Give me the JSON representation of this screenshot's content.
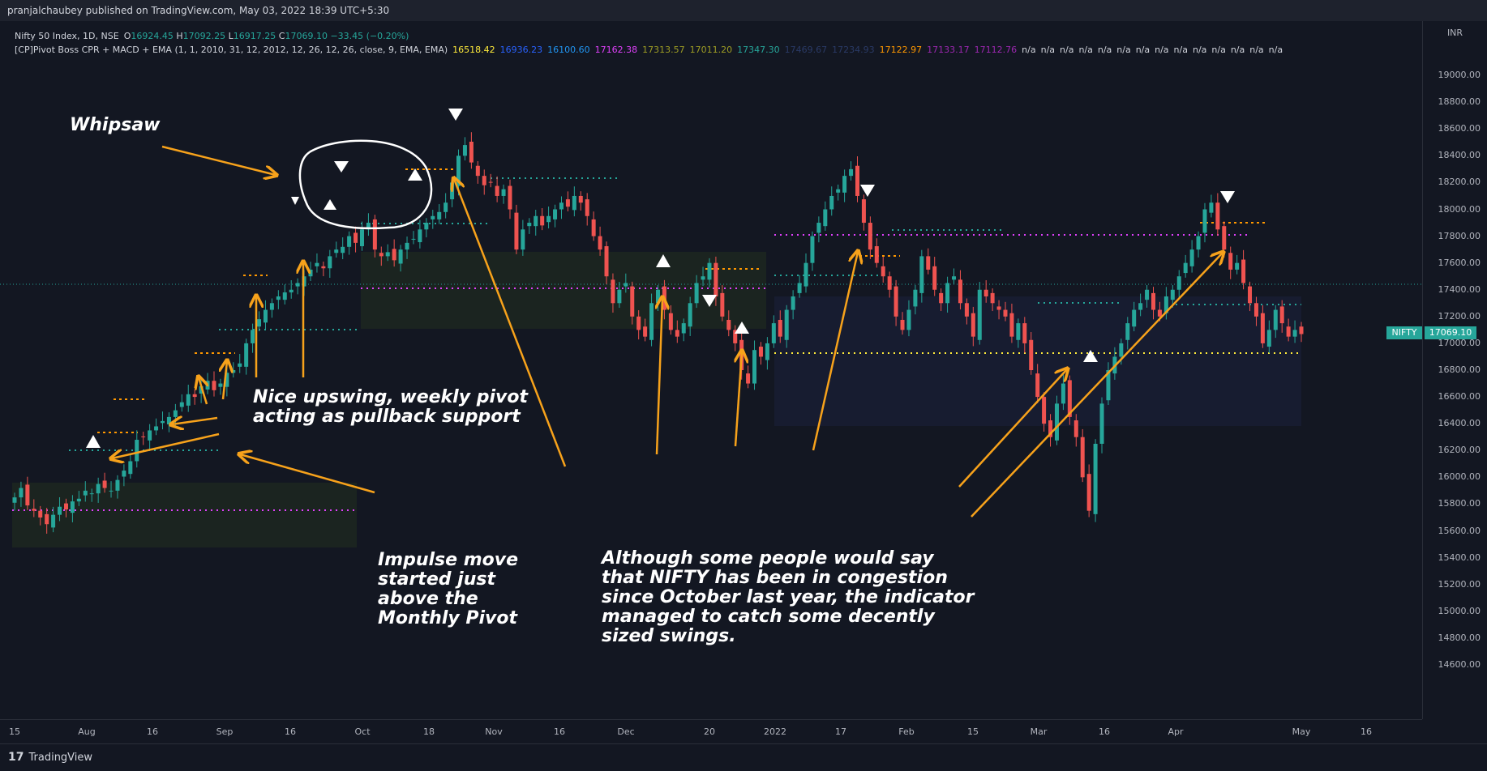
{
  "topbar": {
    "publish_text": "pranjalchaubey published on TradingView.com, May 03, 2022 18:39 UTC+5:30"
  },
  "legend": {
    "symbol": "Nifty 50 Index, 1D, NSE",
    "open_label": "O",
    "open": "16924.45",
    "high_label": "H",
    "high": "17092.25",
    "low_label": "L",
    "low": "16917.25",
    "close_label": "C",
    "close": "17069.10",
    "change": "−33.45 (−0.20%)",
    "indicator": "[CP]Pivot Boss CPR + MACD + EMA (1, 1, 2010, 31, 12, 2012, 12, 26, 12, 26, close, 9, EMA, EMA)",
    "values": [
      {
        "text": "16518.42",
        "color": "#ffeb3b"
      },
      {
        "text": "16936.23",
        "color": "#2962ff"
      },
      {
        "text": "16100.60",
        "color": "#2196f3"
      },
      {
        "text": "17162.38",
        "color": "#e040fb"
      },
      {
        "text": "17313.57",
        "color": "#9e9d24"
      },
      {
        "text": "17011.20",
        "color": "#9e9d24"
      },
      {
        "text": "17347.30",
        "color": "#26a69a"
      },
      {
        "text": "17469.67",
        "color": "#2a3a66"
      },
      {
        "text": "17234.93",
        "color": "#2a3a66"
      },
      {
        "text": "17122.97",
        "color": "#ff9800"
      },
      {
        "text": "17133.17",
        "color": "#9c27b0"
      },
      {
        "text": "17112.76",
        "color": "#9c27b0"
      }
    ],
    "na": [
      "n/a",
      "n/a",
      "n/a",
      "n/a",
      "n/a",
      "n/a",
      "n/a",
      "n/a",
      "n/a",
      "n/a",
      "n/a",
      "n/a",
      "n/a",
      "n/a"
    ]
  },
  "price_axis": {
    "currency": "INR",
    "labels": [
      "19000.00",
      "18800.00",
      "18600.00",
      "18400.00",
      "18200.00",
      "18000.00",
      "17800.00",
      "17600.00",
      "17400.00",
      "17200.00",
      "17000.00",
      "16800.00",
      "16600.00",
      "16400.00",
      "16200.00",
      "16000.00",
      "15800.00",
      "15600.00",
      "15400.00",
      "15200.00",
      "15000.00",
      "14800.00",
      "14600.00"
    ],
    "symbol_tag": "NIFTY",
    "last_price": "17069.10"
  },
  "time_axis": {
    "labels": [
      "15",
      "Aug",
      "16",
      "Sep",
      "16",
      "Oct",
      "18",
      "Nov",
      "16",
      "Dec",
      "20",
      "2022",
      "17",
      "Feb",
      "15",
      "Mar",
      "16",
      "Apr",
      "May",
      "16"
    ]
  },
  "annotations": {
    "whipsaw": "Whipsaw",
    "upswing": [
      "Nice upswing, weekly pivot",
      "acting as pullback support"
    ],
    "impulse": [
      "Impulse move",
      "started just",
      "above the",
      "Monthly Pivot"
    ],
    "congestion": [
      "Although some people would say",
      "that NIFTY has been in congestion",
      "since October last year, the indicator",
      "managed to catch some decently",
      "sized swings."
    ]
  },
  "footer": {
    "brand": "TradingView"
  },
  "colors": {
    "up": "#26a69a",
    "down": "#ef5350",
    "arrow": "#f7a21b",
    "bg": "#131722"
  },
  "chart_data": {
    "type": "candlestick",
    "title": "",
    "ylim": [
      14400,
      19200
    ],
    "x_labels": [
      "15",
      "Aug",
      "16",
      "Sep",
      "16",
      "Oct",
      "18",
      "Nov",
      "16",
      "Dec",
      "20",
      "2022",
      "17",
      "Feb",
      "15",
      "Mar",
      "16",
      "Apr",
      "May",
      "16"
    ],
    "closes": [
      15850,
      15920,
      15790,
      15750,
      15700,
      15650,
      15720,
      15780,
      15760,
      15820,
      15840,
      15900,
      15880,
      15950,
      15920,
      15900,
      15980,
      16050,
      16120,
      16280,
      16300,
      16350,
      16380,
      16420,
      16450,
      16500,
      16560,
      16620,
      16600,
      16680,
      16720,
      16650,
      16700,
      16780,
      16800,
      16850,
      17000,
      17100,
      17180,
      17250,
      17300,
      17350,
      17380,
      17400,
      17450,
      17500,
      17550,
      17600,
      17560,
      17650,
      17700,
      17720,
      17800,
      17750,
      17850,
      17900,
      17700,
      17650,
      17680,
      17620,
      17700,
      17750,
      17780,
      17850,
      17900,
      17950,
      17980,
      18050,
      18200,
      18400,
      18480,
      18350,
      18250,
      18180,
      18200,
      18100,
      18150,
      18000,
      17700,
      17850,
      17900,
      17950,
      17880,
      17950,
      18000,
      18050,
      18020,
      18100,
      18050,
      17950,
      17800,
      17700,
      17500,
      17300,
      17400,
      17450,
      17200,
      17100,
      17050,
      17300,
      17400,
      17250,
      17100,
      17050,
      17150,
      17300,
      17450,
      17500,
      17600,
      17350,
      17200,
      17100,
      17000,
      16800,
      16700,
      16950,
      16900,
      17000,
      17150,
      17050,
      17250,
      17350,
      17450,
      17600,
      17800,
      17900,
      18000,
      18100,
      18150,
      18250,
      18300,
      18100,
      17900,
      17700,
      17600,
      17500,
      17400,
      17200,
      17100,
      17250,
      17400,
      17650,
      17550,
      17400,
      17300,
      17450,
      17500,
      17300,
      17200,
      17050,
      17400,
      17350,
      17300,
      17250,
      17200,
      17050,
      17150,
      17000,
      16800,
      16600,
      16400,
      16300,
      16550,
      16700,
      16450,
      16300,
      16000,
      15750,
      16250,
      16550,
      16800,
      16900,
      17000,
      17150,
      17250,
      17300,
      17400,
      17250,
      17200,
      17350,
      17400,
      17500,
      17600,
      17700,
      17800,
      18000,
      18050,
      17850,
      17700,
      17550,
      17600,
      17450,
      17300,
      17200,
      17000,
      17100,
      17250,
      17150,
      17050,
      17100,
      17069
    ]
  }
}
